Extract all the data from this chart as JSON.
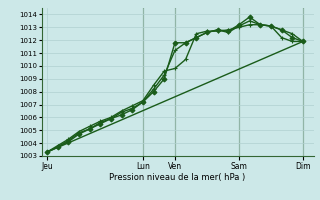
{
  "title": "Pression niveau de la mer( hPa )",
  "background_color": "#cce8e8",
  "grid_color": "#b0d0d0",
  "line_color": "#1a5c1a",
  "ylim": [
    1003,
    1014.5
  ],
  "yticks": [
    1003,
    1004,
    1005,
    1006,
    1007,
    1008,
    1009,
    1010,
    1011,
    1012,
    1013,
    1014
  ],
  "x_day_labels": [
    "Jeu",
    "Lun",
    "Ven",
    "Sam",
    "Dim"
  ],
  "x_day_positions": [
    0,
    9,
    12,
    18,
    24
  ],
  "xlim": [
    -0.5,
    25
  ],
  "vline_positions": [
    9,
    12,
    18,
    24
  ],
  "series": [
    {
      "x": [
        0,
        1,
        2,
        3,
        4,
        5,
        6,
        7,
        8,
        9,
        10,
        11,
        12,
        13,
        14,
        15,
        16,
        17,
        18,
        19,
        20,
        21,
        22,
        23,
        24
      ],
      "y": [
        1003.3,
        1003.7,
        1004.1,
        1004.7,
        1005.1,
        1005.5,
        1005.9,
        1006.2,
        1006.6,
        1007.2,
        1008.0,
        1009.0,
        1011.8,
        1011.8,
        1012.2,
        1012.6,
        1012.8,
        1012.7,
        1013.2,
        1013.8,
        1013.2,
        1013.1,
        1012.8,
        1012.2,
        1011.9
      ],
      "marker": "D",
      "markersize": 2.5,
      "linewidth": 1.0,
      "linestyle": "-"
    },
    {
      "x": [
        0,
        1,
        2,
        3,
        4,
        5,
        6,
        7,
        8,
        9,
        10,
        11,
        12,
        13,
        14,
        15,
        16,
        17,
        18,
        19,
        20,
        21,
        22,
        23,
        24
      ],
      "y": [
        1003.3,
        1003.7,
        1004.2,
        1004.8,
        1005.1,
        1005.6,
        1005.9,
        1006.4,
        1006.7,
        1007.2,
        1008.2,
        1009.3,
        1011.2,
        1011.8,
        1012.2,
        1012.6,
        1012.8,
        1012.6,
        1013.1,
        1013.5,
        1013.2,
        1013.1,
        1012.2,
        1011.9,
        1011.9
      ],
      "marker": "+",
      "markersize": 3.5,
      "linewidth": 1.0,
      "linestyle": "-"
    },
    {
      "x": [
        0,
        24
      ],
      "y": [
        1003.3,
        1011.9
      ],
      "marker": "None",
      "markersize": 0,
      "linewidth": 1.0,
      "linestyle": "-"
    },
    {
      "x": [
        0,
        1,
        2,
        3,
        4,
        5,
        6,
        7,
        8,
        9,
        10,
        11,
        12,
        13,
        14,
        15,
        16,
        17,
        18,
        19,
        20,
        21,
        22,
        23,
        24
      ],
      "y": [
        1003.3,
        1003.8,
        1004.3,
        1004.9,
        1005.3,
        1005.7,
        1006.0,
        1006.5,
        1006.9,
        1007.3,
        1008.5,
        1009.6,
        1009.8,
        1010.5,
        1012.5,
        1012.7,
        1012.7,
        1012.8,
        1013.0,
        1013.2,
        1013.2,
        1013.1,
        1012.8,
        1012.5,
        1011.9
      ],
      "marker": "+",
      "markersize": 3.5,
      "linewidth": 1.0,
      "linestyle": "-"
    }
  ]
}
